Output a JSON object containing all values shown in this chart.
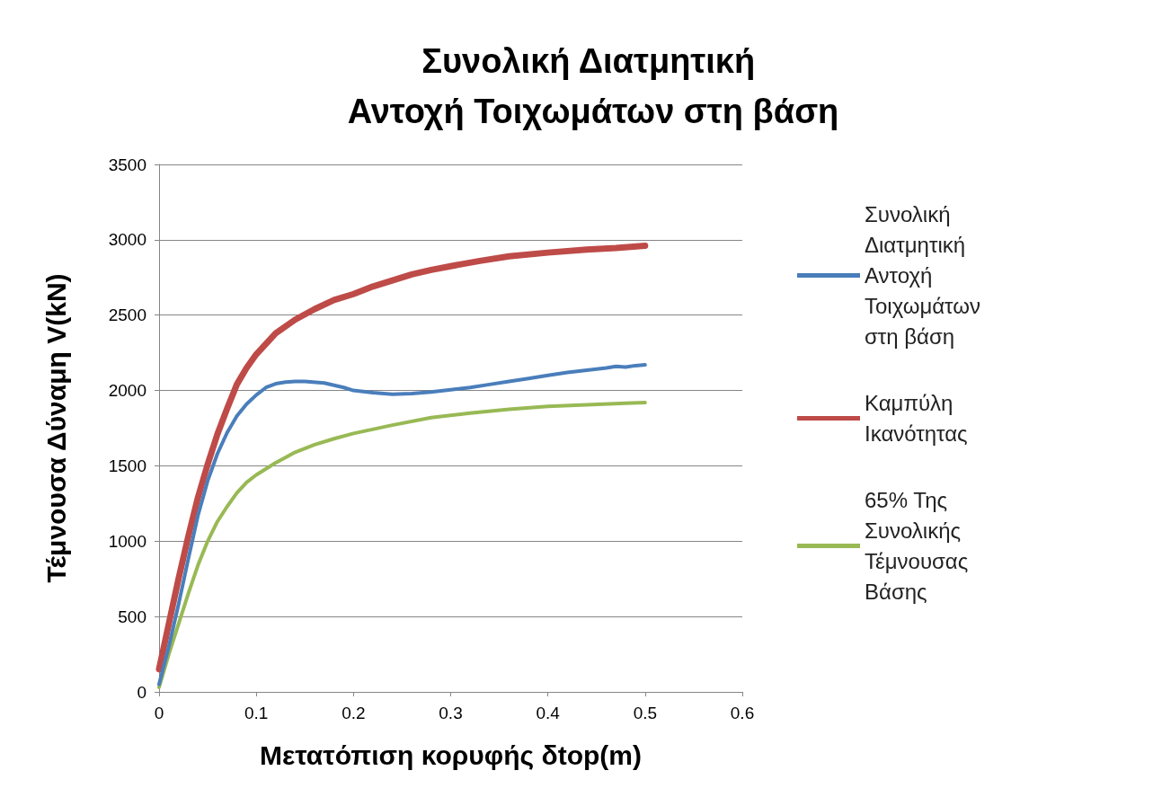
{
  "chart_data": {
    "type": "line",
    "title": "Συνολική Διατμητική Αντοχή Τοιχωμάτων στη βάση",
    "xlabel": "Μετατόπιση κορυφής δtop(m)",
    "ylabel": "Τέμνουσα Δύναμη V(kN)",
    "xlim": [
      0,
      0.6
    ],
    "xticks": [
      0,
      0.1,
      0.2,
      0.3,
      0.4,
      0.5,
      0.6
    ],
    "ylim": [
      0,
      3500
    ],
    "yticks": [
      0,
      500,
      1000,
      1500,
      2000,
      2500,
      3000,
      3500
    ],
    "grid": "y",
    "legend": "right",
    "marker": "none",
    "line_style": "solid",
    "series": [
      {
        "name": "Συνολική Διατμητική Αντοχή Τοιχωμάτων στη βάση",
        "color": "#4a7ebb",
        "x": [
          0,
          0.01,
          0.02,
          0.03,
          0.04,
          0.05,
          0.06,
          0.07,
          0.08,
          0.09,
          0.1,
          0.11,
          0.12,
          0.13,
          0.14,
          0.15,
          0.17,
          0.19,
          0.2,
          0.22,
          0.24,
          0.26,
          0.28,
          0.3,
          0.32,
          0.34,
          0.36,
          0.38,
          0.4,
          0.42,
          0.44,
          0.46,
          0.47,
          0.48,
          0.49,
          0.5
        ],
        "values": [
          50,
          300,
          580,
          880,
          1170,
          1400,
          1580,
          1720,
          1830,
          1910,
          1970,
          2020,
          2045,
          2055,
          2060,
          2060,
          2050,
          2020,
          2000,
          1985,
          1975,
          1980,
          1990,
          2005,
          2020,
          2040,
          2060,
          2080,
          2100,
          2120,
          2135,
          2150,
          2160,
          2155,
          2165,
          2170
        ]
      },
      {
        "name": "Καμπύλη Ικανότητας",
        "color": "#be4b48",
        "x": [
          0,
          0.01,
          0.02,
          0.03,
          0.04,
          0.05,
          0.06,
          0.07,
          0.08,
          0.09,
          0.1,
          0.12,
          0.14,
          0.16,
          0.18,
          0.2,
          0.22,
          0.24,
          0.26,
          0.28,
          0.3,
          0.33,
          0.36,
          0.4,
          0.44,
          0.47,
          0.5
        ],
        "values": [
          150,
          450,
          750,
          1030,
          1290,
          1510,
          1710,
          1880,
          2040,
          2150,
          2240,
          2380,
          2470,
          2540,
          2600,
          2640,
          2690,
          2730,
          2770,
          2800,
          2825,
          2860,
          2890,
          2915,
          2935,
          2945,
          2960
        ]
      },
      {
        "name": "65% Της Συνολικής Τέμνουσας Βάσης",
        "color": "#98b954",
        "x": [
          0,
          0.01,
          0.02,
          0.03,
          0.04,
          0.05,
          0.06,
          0.07,
          0.08,
          0.09,
          0.1,
          0.12,
          0.14,
          0.16,
          0.18,
          0.2,
          0.24,
          0.28,
          0.32,
          0.36,
          0.4,
          0.44,
          0.48,
          0.5
        ],
        "values": [
          30,
          250,
          450,
          650,
          840,
          1000,
          1130,
          1230,
          1320,
          1390,
          1440,
          1520,
          1590,
          1640,
          1680,
          1715,
          1770,
          1820,
          1850,
          1875,
          1895,
          1905,
          1915,
          1920
        ]
      }
    ]
  }
}
